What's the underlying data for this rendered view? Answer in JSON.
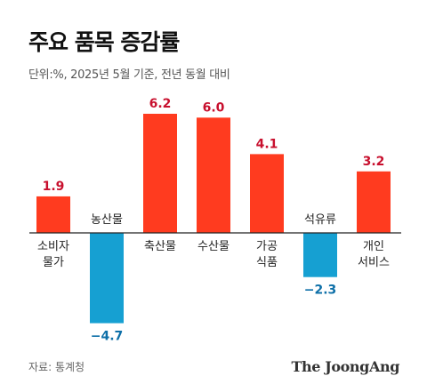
{
  "header": {
    "title": "주요 품목 증감률",
    "subtitle": "단위:%, 2025년 5월 기준, 전년 동월 대비"
  },
  "footer": {
    "source": "자료: 통계청",
    "logo": "The JoongAng"
  },
  "colors": {
    "positive": "#ff3b1f",
    "negative": "#16a0d2",
    "positive_label": "#c8102e",
    "negative_label": "#0d6fa8",
    "baseline": "#222222"
  },
  "chart_data": {
    "type": "bar",
    "categories": [
      [
        "소비자",
        "물가"
      ],
      [
        "농산물"
      ],
      [
        "축산물"
      ],
      [
        "수산물"
      ],
      [
        "가공",
        "식품"
      ],
      [
        "석유류"
      ],
      [
        "개인",
        "서비스"
      ]
    ],
    "values": [
      1.9,
      -4.7,
      6.2,
      6.0,
      4.1,
      -2.3,
      3.2
    ],
    "value_labels": [
      "1.9",
      "−4.7",
      "6.2",
      "6.0",
      "4.1",
      "−2.3",
      "3.2"
    ],
    "title": "주요 품목 증감률",
    "subtitle": "단위:%, 2025년 5월 기준, 전년 동월 대비",
    "ylim": [
      -4.7,
      6.2
    ],
    "grid": false
  }
}
